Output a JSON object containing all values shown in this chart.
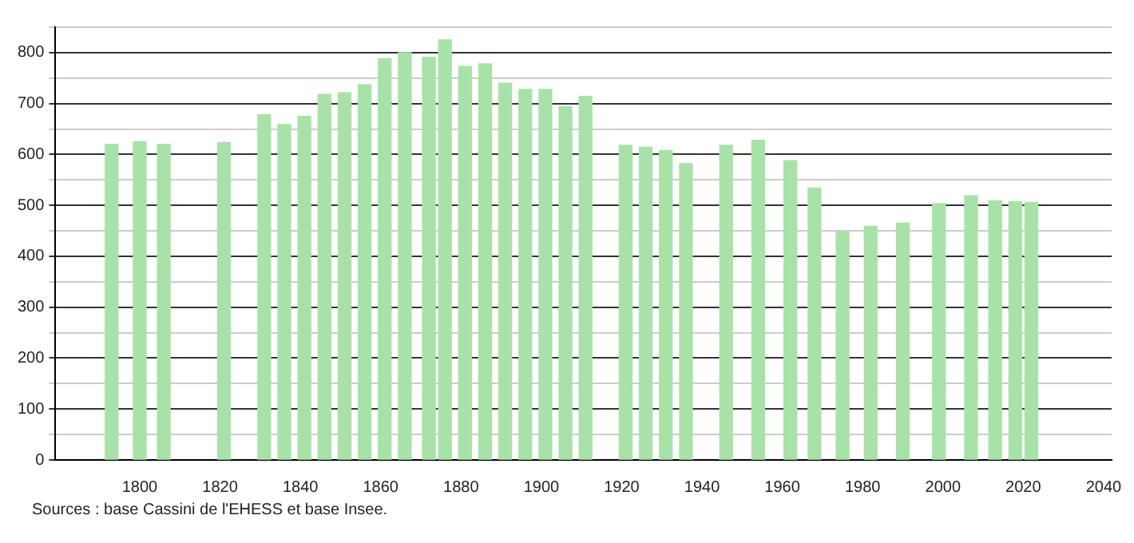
{
  "chart_data": {
    "type": "bar",
    "color": "#a8e2a8",
    "x": [
      1793,
      1800,
      1806,
      1821,
      1831,
      1836,
      1841,
      1846,
      1851,
      1856,
      1861,
      1866,
      1872,
      1876,
      1881,
      1886,
      1891,
      1896,
      1901,
      1906,
      1911,
      1921,
      1926,
      1931,
      1936,
      1946,
      1954,
      1962,
      1968,
      1975,
      1982,
      1990,
      1999,
      2007,
      2013,
      2018,
      2022
    ],
    "values": [
      620,
      625,
      620,
      623,
      678,
      659,
      675,
      718,
      721,
      737,
      788,
      800,
      791,
      825,
      773,
      778,
      740,
      728,
      728,
      694,
      714,
      618,
      614,
      608,
      582,
      618,
      628,
      588,
      534,
      448,
      459,
      465,
      503,
      519,
      509,
      507,
      506
    ],
    "xlim": [
      1779,
      2042
    ],
    "xticks": [
      1800,
      1820,
      1840,
      1860,
      1880,
      1900,
      1920,
      1940,
      1960,
      1980,
      2000,
      2020,
      2040
    ],
    "ylim": [
      0,
      850
    ],
    "yticks": [
      0,
      {
        "value": 50,
        "label": null
      },
      100,
      {
        "value": 150,
        "label": null
      },
      200,
      {
        "value": 250,
        "label": null
      },
      300,
      {
        "value": 350,
        "label": null
      },
      400,
      {
        "value": 450,
        "label": null
      },
      500,
      {
        "value": 550,
        "label": null
      },
      600,
      {
        "value": 650,
        "label": null
      },
      700,
      {
        "value": 750,
        "label": null
      },
      800,
      {
        "value": 850,
        "label": null
      }
    ],
    "grid": "y",
    "annotations": [
      "Sources : base Cassini de l'EHESS et base Insee."
    ]
  }
}
